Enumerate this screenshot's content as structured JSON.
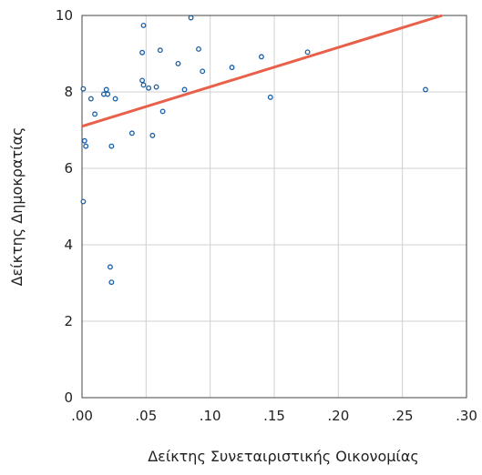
{
  "chart_data": {
    "type": "scatter",
    "xlabel": "Δείκτης Συνεταιριστικής Οικονομίας",
    "ylabel": "Δείκτης Δημοκρατίας",
    "xlim": [
      0,
      0.3
    ],
    "ylim": [
      0,
      10
    ],
    "x_ticks": [
      0.0,
      0.05,
      0.1,
      0.15,
      0.2,
      0.25,
      0.3
    ],
    "x_tick_labels": [
      ".00",
      ".05",
      ".10",
      ".15",
      ".20",
      ".25",
      ".30"
    ],
    "y_ticks": [
      0,
      2,
      4,
      6,
      8,
      10
    ],
    "y_tick_labels": [
      "0",
      "2",
      "4",
      "6",
      "8",
      "10"
    ],
    "grid": true,
    "points": [
      {
        "x": 0.001,
        "y": 8.08
      },
      {
        "x": 0.002,
        "y": 6.72
      },
      {
        "x": 0.003,
        "y": 6.58
      },
      {
        "x": 0.001,
        "y": 5.13
      },
      {
        "x": 0.007,
        "y": 7.82
      },
      {
        "x": 0.01,
        "y": 7.42
      },
      {
        "x": 0.017,
        "y": 7.94
      },
      {
        "x": 0.019,
        "y": 8.06
      },
      {
        "x": 0.02,
        "y": 7.94
      },
      {
        "x": 0.022,
        "y": 3.42
      },
      {
        "x": 0.023,
        "y": 3.02
      },
      {
        "x": 0.023,
        "y": 6.58
      },
      {
        "x": 0.026,
        "y": 7.82
      },
      {
        "x": 0.039,
        "y": 6.92
      },
      {
        "x": 0.047,
        "y": 9.03
      },
      {
        "x": 0.048,
        "y": 9.74
      },
      {
        "x": 0.047,
        "y": 8.3
      },
      {
        "x": 0.048,
        "y": 8.18
      },
      {
        "x": 0.052,
        "y": 8.1
      },
      {
        "x": 0.055,
        "y": 6.86
      },
      {
        "x": 0.058,
        "y": 8.13
      },
      {
        "x": 0.061,
        "y": 9.09
      },
      {
        "x": 0.063,
        "y": 7.49
      },
      {
        "x": 0.075,
        "y": 8.74
      },
      {
        "x": 0.08,
        "y": 8.06
      },
      {
        "x": 0.085,
        "y": 9.94
      },
      {
        "x": 0.091,
        "y": 9.12
      },
      {
        "x": 0.094,
        "y": 8.54
      },
      {
        "x": 0.117,
        "y": 8.64
      },
      {
        "x": 0.14,
        "y": 8.92
      },
      {
        "x": 0.147,
        "y": 7.86
      },
      {
        "x": 0.176,
        "y": 9.04
      },
      {
        "x": 0.268,
        "y": 8.06
      }
    ],
    "trendline": {
      "x": [
        0.0,
        0.281
      ],
      "y": [
        7.1,
        10.0
      ]
    },
    "colors": {
      "points": "#1a5fa8",
      "trendline": "#e8604a",
      "grid": "#d0d0d0",
      "frame": "#444444",
      "text": "#222222"
    }
  }
}
